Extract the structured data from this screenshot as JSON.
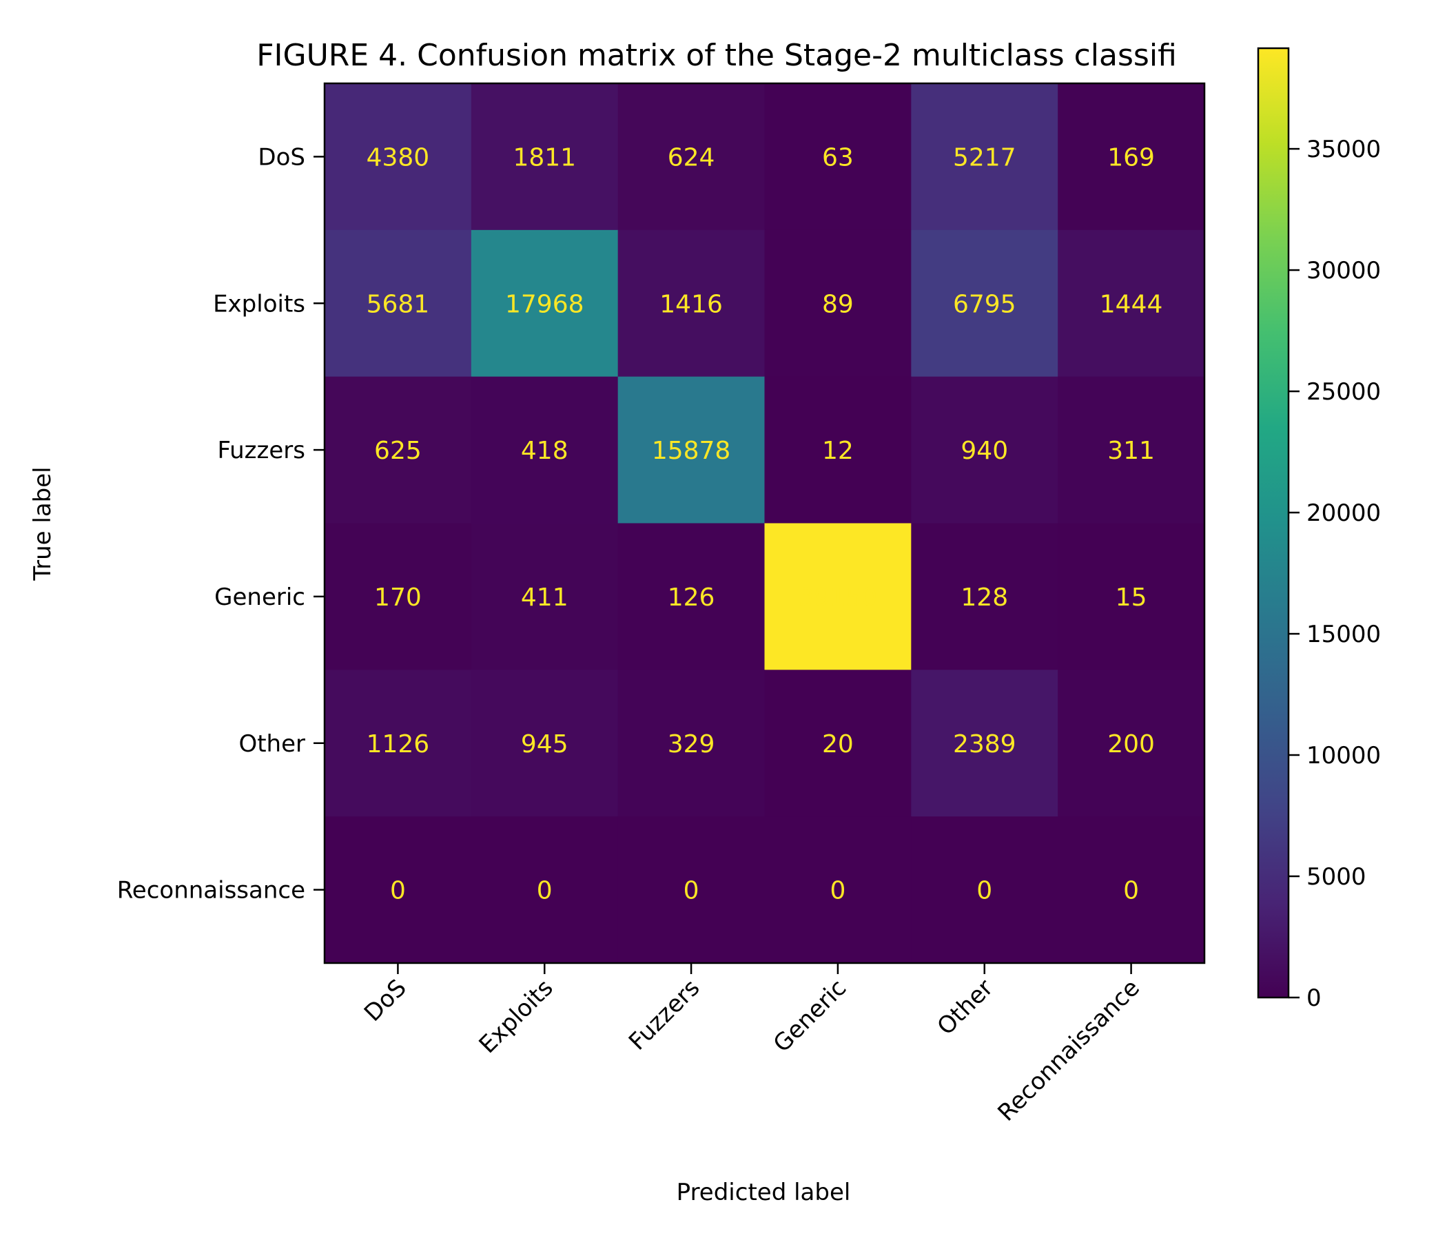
{
  "chart_data": {
    "type": "heatmap",
    "title": "FIGURE 4. Confusion matrix of the Stage-2 multiclass classifi",
    "xlabel": "Predicted label",
    "ylabel": "True label",
    "x_categories": [
      "DoS",
      "Exploits",
      "Fuzzers",
      "Generic",
      "Other",
      "Reconnaissance"
    ],
    "y_categories": [
      "DoS",
      "Exploits",
      "Fuzzers",
      "Generic",
      "Other",
      "Reconnaissance"
    ],
    "values": [
      [
        4380,
        1811,
        624,
        63,
        5217,
        169
      ],
      [
        5681,
        17968,
        1416,
        89,
        6795,
        1444
      ],
      [
        625,
        418,
        15878,
        12,
        940,
        311
      ],
      [
        170,
        411,
        126,
        39150,
        128,
        15
      ],
      [
        1126,
        945,
        329,
        20,
        2389,
        200
      ],
      [
        0,
        0,
        0,
        0,
        0,
        0
      ]
    ],
    "colormap": "viridis",
    "value_text_color": "#fde725",
    "colorbar": {
      "range": [
        0,
        39150
      ],
      "ticks": [
        0,
        5000,
        10000,
        15000,
        20000,
        25000,
        30000,
        35000
      ],
      "tick_labels": [
        "0",
        "5000",
        "10000",
        "15000",
        "20000",
        "25000",
        "30000",
        "35000"
      ]
    },
    "grid": false,
    "x_tick_rotation_deg": 45
  }
}
